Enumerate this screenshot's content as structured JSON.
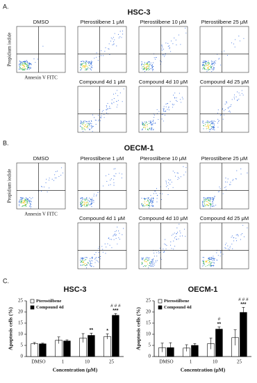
{
  "panels": [
    {
      "label": "A.",
      "title": "HSC-3",
      "y_label": "Propidium iodide",
      "x_label": "Annexin V FITC",
      "plots": [
        "DMSO",
        "Pterostilbene 1 μM",
        "Pterostilbene 10 μM",
        "Pterostilbene 25 μM",
        "Compound 4d 1 μM",
        "Compound 4d 10 μM",
        "Compound 4d 25 μM"
      ]
    },
    {
      "label": "B.",
      "title": "OECM-1",
      "y_label": "Propidium iodide",
      "x_label": "Annexin V FITC",
      "plots": [
        "DMSO",
        "Pterostilbene 1 μM",
        "Pterostilbene 10 μM",
        "Pterostilbene 25 μM",
        "Compound 4d 1 μM",
        "Compound 4d 10 μM",
        "Compound 4d 25 μM"
      ]
    }
  ],
  "panel_c_label": "C.",
  "chart_data": [
    {
      "type": "bar",
      "title": "HSC-3",
      "y_label": "Apoptosis cells (%)",
      "x_label": "Concentration (μM)",
      "categories": [
        "DMSO",
        "1",
        "10",
        "25"
      ],
      "ylim": [
        0,
        25
      ],
      "yticks": [
        0,
        5,
        10,
        15,
        20,
        25
      ],
      "series": [
        {
          "name": "Pterostilbene",
          "color": "#ffffff",
          "values": [
            5.8,
            7.3,
            8.3,
            9.0
          ],
          "errors": [
            0.5,
            1.5,
            2.0,
            1.2
          ],
          "stars": [
            null,
            null,
            null,
            "*"
          ],
          "hashes": [
            null,
            null,
            null,
            null
          ]
        },
        {
          "name": "Compound 4d",
          "color": "#000000",
          "values": [
            5.7,
            7.0,
            9.5,
            18.5
          ],
          "errors": [
            0.3,
            0.5,
            1.0,
            0.8
          ],
          "stars": [
            null,
            null,
            "**",
            "***"
          ],
          "hashes": [
            null,
            null,
            null,
            "# # #"
          ]
        }
      ]
    },
    {
      "type": "bar",
      "title": "OECM-1",
      "y_label": "Apoptosis cells (%)",
      "x_label": "Concentration (μM)",
      "categories": [
        "DMSO",
        "1",
        "10",
        "25"
      ],
      "ylim": [
        0,
        25
      ],
      "yticks": [
        0,
        5,
        10,
        15,
        20,
        25
      ],
      "series": [
        {
          "name": "Pterostilbene",
          "color": "#ffffff",
          "values": [
            4.0,
            3.8,
            5.8,
            8.5
          ],
          "errors": [
            2.0,
            1.5,
            2.5,
            3.5
          ],
          "stars": [
            null,
            null,
            null,
            null
          ],
          "hashes": [
            null,
            null,
            null,
            null
          ]
        },
        {
          "name": "Compound 4d",
          "color": "#000000",
          "values": [
            4.0,
            5.0,
            12.3,
            19.8
          ],
          "errors": [
            2.2,
            0.8,
            1.0,
            2.3
          ],
          "stars": [
            null,
            null,
            "**",
            "***"
          ],
          "hashes": [
            null,
            null,
            "#",
            "# # #"
          ]
        }
      ]
    }
  ]
}
